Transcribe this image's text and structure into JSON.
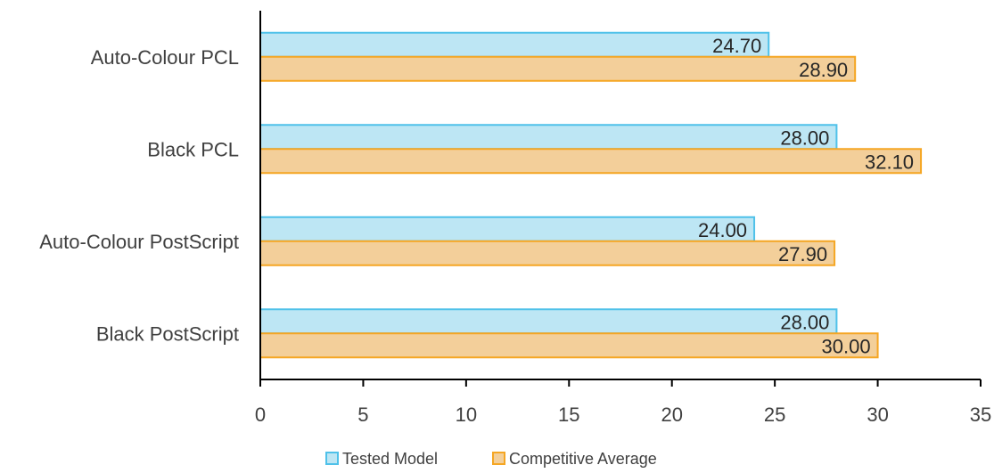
{
  "chart_data": {
    "type": "bar",
    "orientation": "horizontal",
    "categories": [
      "Auto-Colour PCL",
      "Black PCL",
      "Auto-Colour PostScript",
      "Black PostScript"
    ],
    "series": [
      {
        "name": "Tested Model",
        "values": [
          24.7,
          28.0,
          24.0,
          28.0
        ],
        "labels": [
          "24.70",
          "28.00",
          "24.00",
          "28.00"
        ]
      },
      {
        "name": "Competitive Average",
        "values": [
          28.9,
          32.1,
          27.9,
          30.0
        ],
        "labels": [
          "28.90",
          "32.10",
          "27.90",
          "30.00"
        ]
      }
    ],
    "xticks": [
      "0",
      "5",
      "10",
      "15",
      "20",
      "25",
      "30",
      "35"
    ],
    "xlim": [
      0,
      35
    ],
    "title": "",
    "xlabel": "",
    "ylabel": "",
    "grid": false,
    "legend_position": "bottom",
    "colors": {
      "Tested Model": {
        "fill": "#bde6f4",
        "stroke": "#4fc1e9"
      },
      "Competitive Average": {
        "fill": "#f3cf9a",
        "stroke": "#f5a623"
      },
      "axis": "#000000"
    }
  }
}
